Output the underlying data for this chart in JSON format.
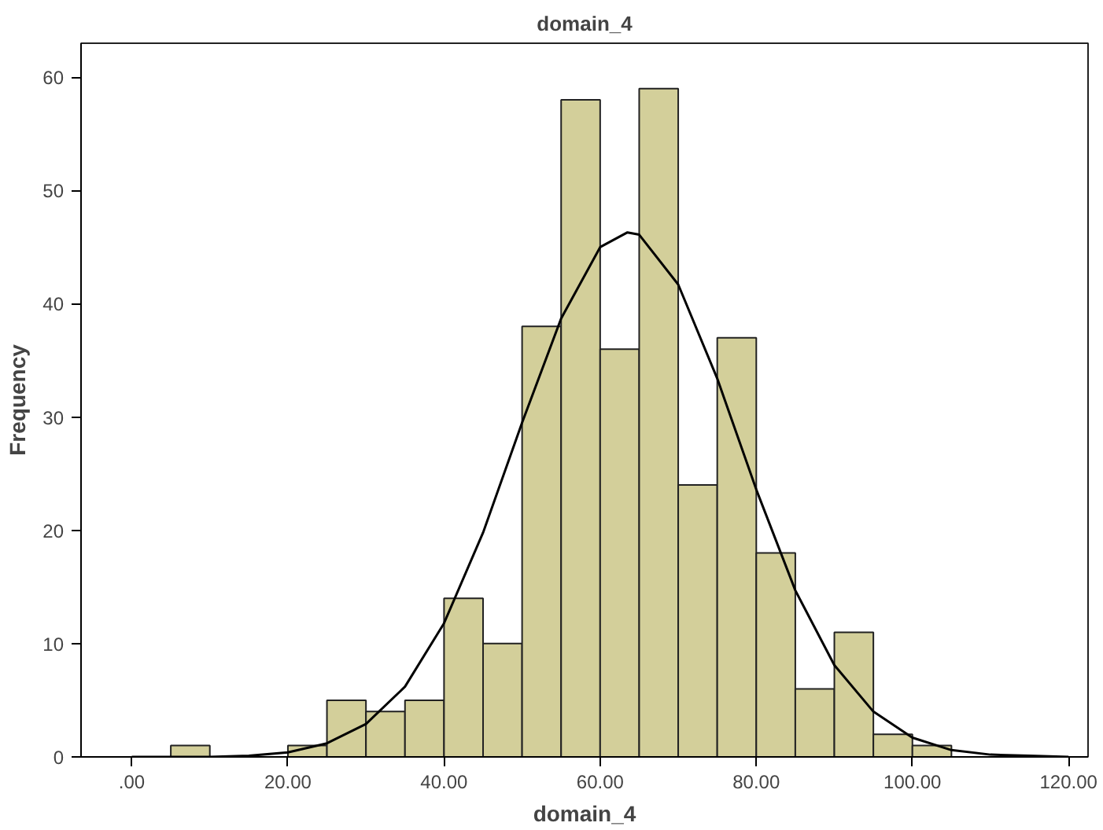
{
  "chart_data": {
    "type": "histogram",
    "title": "domain_4",
    "xlabel": "domain_4",
    "ylabel": "Frequency",
    "bins": [
      5,
      10,
      15,
      20,
      25,
      30,
      35,
      40,
      45,
      50,
      55,
      60,
      65,
      70,
      75,
      80,
      85,
      90,
      95,
      100,
      105
    ],
    "values": [
      1,
      0,
      0,
      1,
      5,
      4,
      5,
      14,
      10,
      38,
      58,
      36,
      59,
      24,
      37,
      18,
      6,
      11,
      2,
      1
    ],
    "color": "#d3cf9a",
    "series": [
      {
        "type": "line",
        "color": "#000000",
        "x": [
          0,
          5,
          10,
          15,
          20,
          25,
          30,
          35,
          40,
          45,
          50,
          55,
          60,
          63.5,
          65,
          70,
          75,
          80,
          85,
          90,
          95,
          100,
          105,
          110,
          115,
          120
        ],
        "values": [
          0.0,
          0.0,
          0.0,
          0.1,
          0.4,
          1.2,
          2.9,
          6.2,
          11.8,
          19.8,
          29.5,
          38.7,
          45.0,
          46.3,
          46.1,
          41.7,
          33.4,
          23.6,
          14.7,
          8.1,
          4.0,
          1.7,
          0.6,
          0.2,
          0.1,
          0.0
        ]
      }
    ],
    "xlim": [
      -6.5,
      122.5
    ],
    "ylim": [
      0,
      63
    ],
    "xticks": [
      {
        "value": 0,
        "label": ".00"
      },
      {
        "value": 20,
        "label": "20.00"
      },
      {
        "value": 40,
        "label": "40.00"
      },
      {
        "value": 60,
        "label": "60.00"
      },
      {
        "value": 80,
        "label": "80.00"
      },
      {
        "value": 100,
        "label": "100.00"
      },
      {
        "value": 120,
        "label": "120.00"
      }
    ],
    "yticks": [
      0,
      10,
      20,
      30,
      40,
      50,
      60
    ],
    "grid": false
  }
}
